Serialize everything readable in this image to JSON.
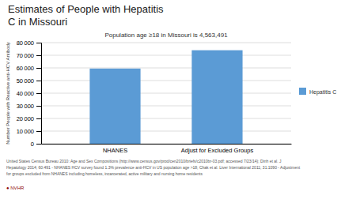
{
  "chart_data": {
    "type": "bar",
    "title": [
      "Estimates of People with Hepatitis",
      "C in Missouri"
    ],
    "subtitle": "Population age ≥18 in Missouri is 4,563,491",
    "categories": [
      "NHANES",
      "Adjust for Excluded Groups"
    ],
    "series": [
      {
        "name": "Hepatitis C",
        "color": "#5B9BD5",
        "values": [
          59500,
          74000
        ]
      }
    ],
    "ylabel": "Number People with Reactive anti-HCV Antibody",
    "ylim": [
      0,
      80000
    ],
    "yticks": [
      0,
      {
        "value": 10000,
        "label": "10 000"
      },
      {
        "value": 20000,
        "label": "20 000"
      },
      {
        "value": 30000,
        "label": "30 000"
      },
      {
        "value": 40000,
        "label": "40 000"
      },
      {
        "value": 50000,
        "label": "50 000"
      },
      {
        "value": 60000,
        "label": "60 000"
      },
      {
        "value": 70000,
        "label": "70 000"
      },
      {
        "value": 80000,
        "label": "80 000"
      }
    ],
    "grid": true,
    "legend": "right",
    "footnote": [
      "United States Census Bureau 2010: Age and Sex Compositions (http://www.census.gov/prod/cen2010/briefs/c2010br-03.pdf; accessed 7/23/14); Dinh et al. J",
      "Hepatology 2014; 60:491 - NHANES HCV survey found 1.3% prevalence anti-HCV in US population age >18; Chak et al. Liver International 2011; 31:1090 - Adjustment",
      "for groups excluded from NHANES including homeless, incarcerated, active military and nursing home residents"
    ],
    "annotations": [
      "● NVHR"
    ]
  }
}
